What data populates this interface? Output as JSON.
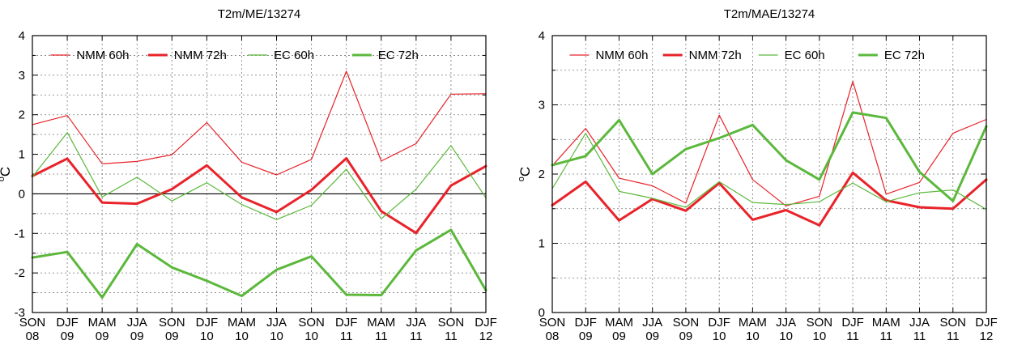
{
  "chart_data": [
    {
      "type": "line",
      "title": "T2m/ME/13274",
      "ylabel": "°C",
      "ylabel_base": "o",
      "ylabel_unit": "C",
      "ylim": [
        -3,
        4
      ],
      "yticks": [
        -3,
        -2,
        -1,
        0,
        1,
        2,
        3,
        4
      ],
      "ytick_labels": [
        "-3",
        "-2",
        "-1",
        "0",
        "1",
        "2",
        "3",
        "4"
      ],
      "zero_line": true,
      "grid": true,
      "legend_position": "top",
      "categories_top": [
        "SON",
        "DJF",
        "MAM",
        "JJA",
        "SON",
        "DJF",
        "MAM",
        "JJA",
        "SON",
        "DJF",
        "MAM",
        "JJA",
        "SON",
        "DJF"
      ],
      "categories_bottom": [
        "08",
        "09",
        "09",
        "09",
        "09",
        "10",
        "10",
        "10",
        "10",
        "11",
        "11",
        "11",
        "11",
        "12"
      ],
      "series": [
        {
          "name": "NMM 60h",
          "color": "#e8232a",
          "width": "thin",
          "values": [
            1.75,
            1.98,
            0.76,
            0.82,
            0.99,
            1.8,
            0.8,
            0.48,
            0.87,
            3.1,
            0.83,
            1.27,
            2.52,
            2.53
          ]
        },
        {
          "name": "NMM 72h",
          "color": "#e8232a",
          "width": "thick",
          "values": [
            0.45,
            0.89,
            -0.22,
            -0.25,
            0.12,
            0.72,
            -0.09,
            -0.46,
            0.1,
            0.9,
            -0.44,
            -0.99,
            0.21,
            0.7
          ]
        },
        {
          "name": "EC 60h",
          "color": "#5cb83c",
          "width": "thin",
          "values": [
            0.43,
            1.55,
            -0.08,
            0.42,
            -0.18,
            0.28,
            -0.27,
            -0.65,
            -0.29,
            0.62,
            -0.63,
            0.12,
            1.22,
            -0.1
          ]
        },
        {
          "name": "EC 72h",
          "color": "#5cb83c",
          "width": "thick",
          "values": [
            -1.61,
            -1.47,
            -2.62,
            -1.27,
            -1.86,
            -2.2,
            -2.58,
            -1.92,
            -1.58,
            -2.55,
            -2.56,
            -1.43,
            -0.91,
            -2.44
          ]
        }
      ]
    },
    {
      "type": "line",
      "title": "T2m/MAE/13274",
      "ylabel": "°C",
      "ylabel_base": "o",
      "ylabel_unit": "C",
      "ylim": [
        0,
        4
      ],
      "yticks": [
        0,
        1,
        2,
        3,
        4
      ],
      "ytick_labels": [
        "0",
        "1",
        "2",
        "3",
        "4"
      ],
      "zero_line": false,
      "grid": true,
      "legend_position": "top",
      "categories_top": [
        "SON",
        "DJF",
        "MAM",
        "JJA",
        "SON",
        "DJF",
        "MAM",
        "JJA",
        "SON",
        "DJF",
        "MAM",
        "JJA",
        "SON",
        "DJF"
      ],
      "categories_bottom": [
        "08",
        "09",
        "09",
        "09",
        "09",
        "10",
        "10",
        "10",
        "10",
        "11",
        "11",
        "11",
        "11",
        "12"
      ],
      "series": [
        {
          "name": "NMM 60h",
          "color": "#e8232a",
          "width": "thin",
          "values": [
            2.12,
            2.66,
            1.94,
            1.83,
            1.58,
            2.85,
            1.92,
            1.54,
            1.68,
            3.34,
            1.71,
            1.88,
            2.59,
            2.79
          ]
        },
        {
          "name": "NMM 72h",
          "color": "#e8232a",
          "width": "thick",
          "values": [
            1.55,
            1.89,
            1.33,
            1.64,
            1.47,
            1.87,
            1.34,
            1.48,
            1.26,
            2.02,
            1.62,
            1.52,
            1.5,
            1.92
          ]
        },
        {
          "name": "EC 60h",
          "color": "#5cb83c",
          "width": "thin",
          "values": [
            1.79,
            2.59,
            1.75,
            1.65,
            1.52,
            1.89,
            1.59,
            1.56,
            1.6,
            1.87,
            1.6,
            1.73,
            1.77,
            1.49
          ]
        },
        {
          "name": "EC 72h",
          "color": "#5cb83c",
          "width": "thick",
          "values": [
            2.13,
            2.26,
            2.78,
            2.0,
            2.36,
            2.52,
            2.71,
            2.2,
            1.92,
            2.89,
            2.81,
            2.03,
            1.61,
            2.69
          ]
        }
      ]
    }
  ]
}
